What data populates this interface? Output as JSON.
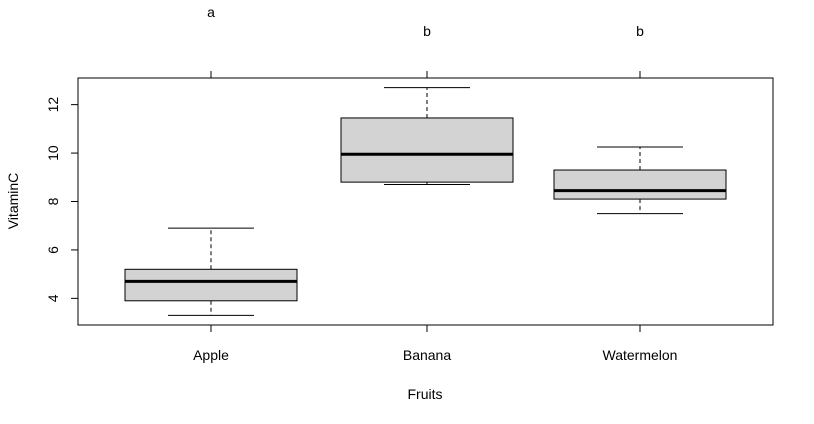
{
  "chart_data": {
    "type": "boxplot",
    "title": "",
    "xlabel": "Fruits",
    "ylabel": "VitaminC",
    "ylim": [
      2.9,
      13.1
    ],
    "y_ticks": [
      4,
      6,
      8,
      10,
      12
    ],
    "grid": false,
    "legend": "none",
    "box_fill": "#d3d3d3",
    "line_color": "#000000",
    "categories": [
      "Apple",
      "Banana",
      "Watermelon"
    ],
    "boxes": [
      {
        "category": "Apple",
        "min": 3.3,
        "q1": 3.9,
        "median": 4.7,
        "q3": 5.2,
        "max": 6.9
      },
      {
        "category": "Banana",
        "min": 8.7,
        "q1": 8.8,
        "median": 9.95,
        "q3": 11.45,
        "max": 12.7
      },
      {
        "category": "Watermelon",
        "min": 7.5,
        "q1": 8.1,
        "median": 8.45,
        "q3": 9.3,
        "max": 10.25
      }
    ],
    "group_letters": [
      "a",
      "b",
      "b"
    ]
  }
}
